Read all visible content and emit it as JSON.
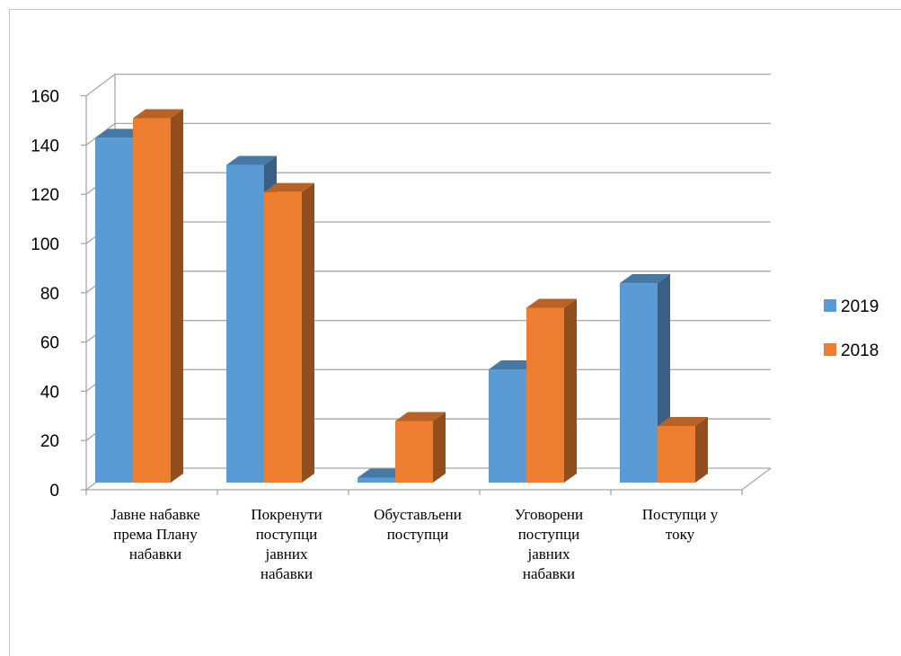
{
  "chart_data": {
    "type": "bar",
    "title": "",
    "xlabel": "",
    "ylabel": "",
    "ylim": [
      0,
      160
    ],
    "yticks": [
      "0",
      "20",
      "40",
      "60",
      "80",
      "100",
      "120",
      "140",
      "160"
    ],
    "grid": true,
    "legend_position": "right",
    "categories": [
      [
        "Јавне набавке",
        "према Плану",
        "набавки"
      ],
      [
        "Покренути",
        "поступци",
        "јавних",
        "набавки"
      ],
      [
        "Обустављени",
        "поступци"
      ],
      [
        "Уговорени",
        "поступци",
        "јавних",
        "набавки"
      ],
      [
        "Поступци  у",
        "току"
      ]
    ],
    "series": [
      {
        "name": "2019",
        "values": [
          140,
          129,
          2,
          46,
          81
        ],
        "color": "#5b9bd5"
      },
      {
        "name": "2018",
        "values": [
          148,
          118,
          25,
          71,
          23
        ],
        "color": "#ed7d31"
      }
    ]
  }
}
